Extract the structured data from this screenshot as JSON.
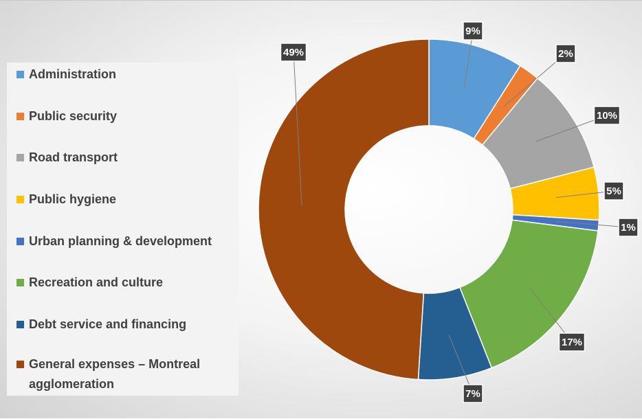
{
  "chart_data": {
    "type": "pie",
    "donut": true,
    "categories": [
      "Administration",
      "Public security",
      "Road transport",
      "Public hygiene",
      "Urban planning & development",
      "Recreation and culture",
      "Debt service and financing",
      "General expenses – Montreal agglomeration"
    ],
    "values": [
      9,
      2,
      10,
      5,
      1,
      17,
      7,
      49
    ],
    "labels": [
      "9%",
      "2%",
      "10%",
      "5%",
      "1%",
      "17%",
      "7%",
      "49%"
    ],
    "colors": [
      "#5b9bd5",
      "#ed7d31",
      "#a5a5a5",
      "#ffc000",
      "#4472c4",
      "#70ad47",
      "#255e91",
      "#9e480e"
    ],
    "legend_position": "left"
  }
}
